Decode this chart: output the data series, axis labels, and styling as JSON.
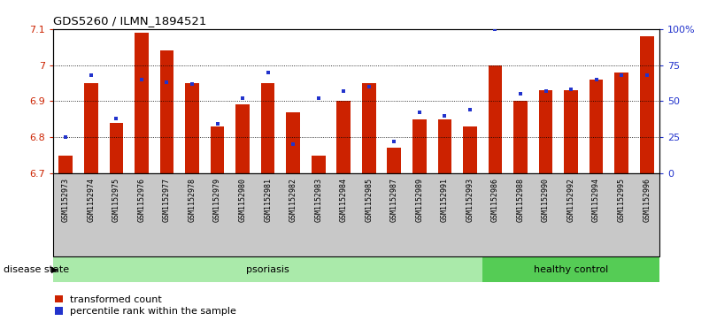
{
  "title": "GDS5260 / ILMN_1894521",
  "samples": [
    "GSM1152973",
    "GSM1152974",
    "GSM1152975",
    "GSM1152976",
    "GSM1152977",
    "GSM1152978",
    "GSM1152979",
    "GSM1152980",
    "GSM1152981",
    "GSM1152982",
    "GSM1152983",
    "GSM1152984",
    "GSM1152985",
    "GSM1152987",
    "GSM1152989",
    "GSM1152991",
    "GSM1152993",
    "GSM1152986",
    "GSM1152988",
    "GSM1152990",
    "GSM1152992",
    "GSM1152994",
    "GSM1152995",
    "GSM1152996"
  ],
  "bar_values": [
    6.75,
    6.95,
    6.84,
    7.09,
    7.04,
    6.95,
    6.83,
    6.89,
    6.95,
    6.87,
    6.75,
    6.9,
    6.95,
    6.77,
    6.85,
    6.85,
    6.83,
    7.0,
    6.9,
    6.93,
    6.93,
    6.96,
    6.98,
    7.08
  ],
  "percentile_values": [
    25,
    68,
    38,
    65,
    63,
    62,
    34,
    52,
    70,
    20,
    52,
    57,
    60,
    22,
    42,
    40,
    44,
    100,
    55,
    57,
    58,
    65,
    68,
    68
  ],
  "psoriasis_count": 17,
  "healthy_count": 7,
  "ylim_left": [
    6.7,
    7.1
  ],
  "ylim_right": [
    0,
    100
  ],
  "bar_color": "#cc2200",
  "dot_color": "#2233cc",
  "xticklabel_bg": "#c8c8c8",
  "psoriasis_color": "#aaeaaa",
  "healthy_color": "#55cc55",
  "yticks_left": [
    6.7,
    6.8,
    6.9,
    7.0,
    7.1
  ],
  "ytick_labels_left": [
    "6.7",
    "6.8",
    "6.9",
    "7",
    "7.1"
  ],
  "yticks_right": [
    0,
    25,
    50,
    75,
    100
  ],
  "ytick_labels_right": [
    "0",
    "25",
    "50",
    "75",
    "100%"
  ],
  "disease_state_label": "disease state",
  "psoriasis_label": "psoriasis",
  "healthy_label": "healthy control",
  "legend_bar_label": "transformed count",
  "legend_dot_label": "percentile rank within the sample"
}
